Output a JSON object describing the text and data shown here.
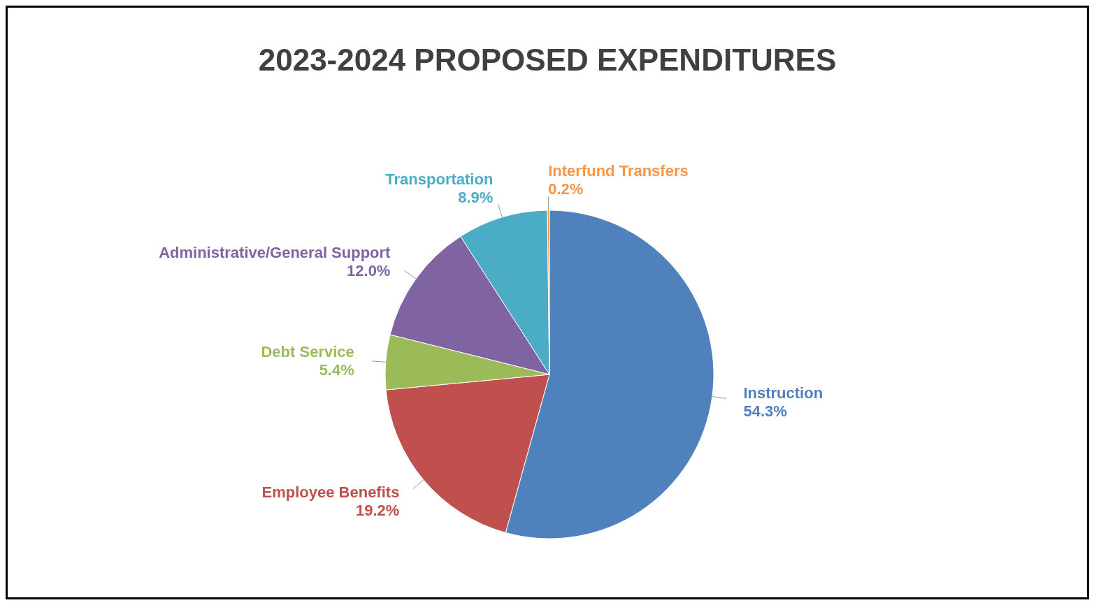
{
  "chart_data": {
    "type": "pie",
    "title": "2023-2024 PROPOSED EXPENDITURES",
    "categories": [
      "Instruction",
      "Employee Benefits",
      "Debt Service",
      "Administrative/General Support",
      "Transportation",
      "Interfund Transfers"
    ],
    "values": [
      54.3,
      19.2,
      5.4,
      12.0,
      8.9,
      0.2
    ],
    "value_labels": [
      "54.3%",
      "19.2%",
      "5.4%",
      "12.0%",
      "8.9%",
      "0.2%"
    ],
    "colors": [
      "#4f81bd",
      "#c0504d",
      "#9bbb59",
      "#8064a2",
      "#4bacc6",
      "#f79646"
    ],
    "legend": false
  }
}
